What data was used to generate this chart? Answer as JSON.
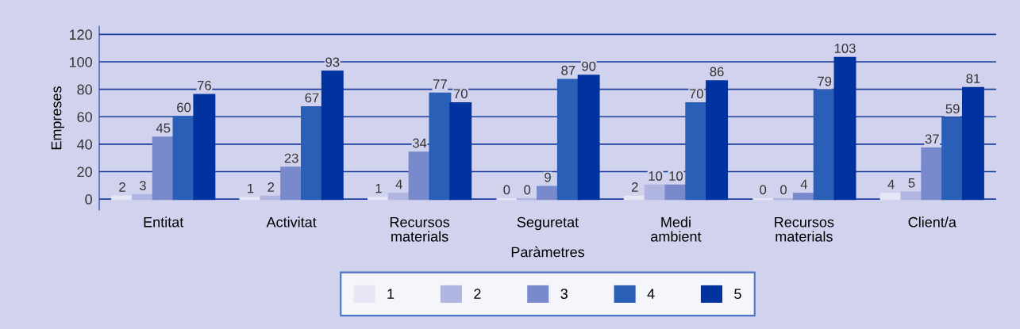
{
  "chart_data": {
    "type": "bar",
    "xlabel": "Paràmetres",
    "ylabel": "Empreses",
    "categories": [
      "Entitat",
      "Activitat",
      "Recursos\nmaterials",
      "Seguretat",
      "Medi\nambient",
      "Recursos\nmaterials",
      "Client/a"
    ],
    "series": [
      {
        "name": "1",
        "color": "#e6e6f5",
        "values": [
          2,
          1,
          1,
          0,
          2,
          0,
          4
        ]
      },
      {
        "name": "2",
        "color": "#b1b5e1",
        "values": [
          3,
          2,
          4,
          0,
          10,
          0,
          5
        ]
      },
      {
        "name": "3",
        "color": "#7889cc",
        "values": [
          45,
          23,
          34,
          9,
          10,
          4,
          37
        ]
      },
      {
        "name": "4",
        "color": "#2a5fb8",
        "values": [
          60,
          67,
          77,
          87,
          70,
          79,
          59
        ]
      },
      {
        "name": "5",
        "color": "#0033a0",
        "values": [
          76,
          93,
          70,
          90,
          86,
          103,
          81
        ]
      }
    ],
    "ylim": [
      -8,
      126
    ],
    "yticks": [
      0,
      20,
      40,
      60,
      80,
      100,
      120
    ],
    "grid": "y",
    "legend": "bottom",
    "data_labels": true
  }
}
